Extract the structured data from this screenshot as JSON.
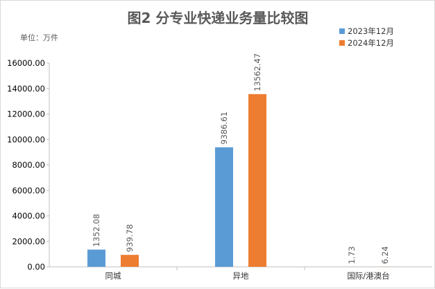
{
  "chart_data": {
    "type": "bar",
    "title": "图2  分专业快递业务量比较图",
    "unit_label": "单位：万件",
    "categories": [
      "同城",
      "异地",
      "国际/港澳台"
    ],
    "series": [
      {
        "name": "2023年12月",
        "color": "#5b9bd5",
        "values": [
          1352.08,
          9386.61,
          1.73
        ],
        "labels": [
          "1352.08",
          "9386.61",
          "1.73"
        ]
      },
      {
        "name": "2024年12月",
        "color": "#ed7d31",
        "values": [
          939.78,
          13562.47,
          6.24
        ],
        "labels": [
          "939.78",
          "13562.47",
          "6.24"
        ]
      }
    ],
    "ylim": [
      0,
      16000
    ],
    "yticks": [
      0,
      2000,
      4000,
      6000,
      8000,
      10000,
      12000,
      14000,
      16000
    ],
    "ytick_labels": [
      "0.00",
      "2000.00",
      "4000.00",
      "6000.00",
      "8000.00",
      "10000.00",
      "12000.00",
      "14000.00",
      "16000.00"
    ],
    "grid": false,
    "legend_position": "top-right"
  }
}
